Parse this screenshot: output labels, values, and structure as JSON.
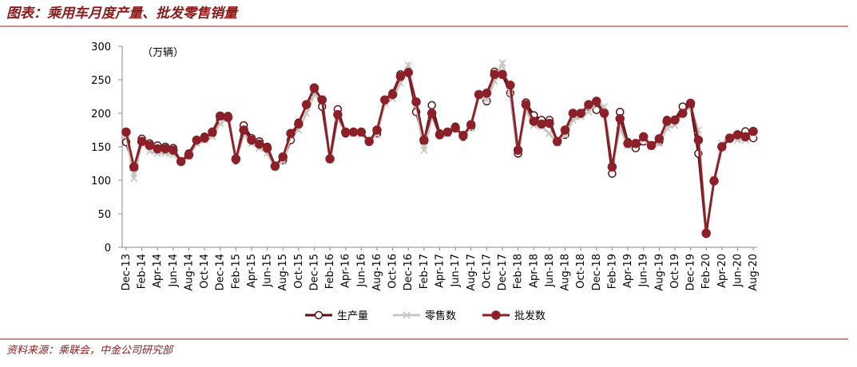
{
  "chart_data": {
    "type": "line",
    "title": "图表：乘用车月度产量、批发零售销量",
    "y_axis_label": "（万辆）",
    "source": "资料来源：乘联会，中金公司研究部",
    "categories": [
      "Dec-13",
      null,
      "Feb-14",
      null,
      "Apr-14",
      null,
      "Jun-14",
      null,
      "Aug-14",
      null,
      "Oct-14",
      null,
      "Dec-14",
      null,
      "Feb-15",
      null,
      "Apr-15",
      null,
      "Jun-15",
      null,
      "Aug-15",
      null,
      "Oct-15",
      null,
      "Dec-15",
      null,
      "Feb-16",
      null,
      "Apr-16",
      null,
      "Jun-16",
      null,
      "Aug-16",
      null,
      "Oct-16",
      null,
      "Dec-16",
      null,
      "Feb-17",
      null,
      "Apr-17",
      null,
      "Jun-17",
      null,
      "Aug-17",
      null,
      "Oct-17",
      null,
      "Dec-17",
      null,
      "Feb-18",
      null,
      "Apr-18",
      null,
      "Jun-18",
      null,
      "Aug-18",
      null,
      "Oct-18",
      null,
      "Dec-18",
      null,
      "Feb-19",
      null,
      "Apr-19",
      null,
      "Jun-19",
      null,
      "Aug-19",
      null,
      "Oct-19",
      null,
      "Dec-19",
      null,
      "Feb-20",
      null,
      "Apr-20",
      null,
      "Jun-20",
      null,
      "Aug-20"
    ],
    "series": [
      {
        "name": "生产量",
        "color": "#5a0f14",
        "marker": "open-circle",
        "values": [
          157,
          118,
          162,
          155,
          152,
          150,
          148,
          128,
          140,
          160,
          165,
          170,
          190,
          196,
          130,
          182,
          163,
          158,
          150,
          122,
          130,
          160,
          186,
          212,
          236,
          210,
          132,
          206,
          170,
          172,
          172,
          158,
          170,
          220,
          230,
          258,
          260,
          202,
          158,
          212,
          170,
          172,
          180,
          165,
          180,
          228,
          218,
          262,
          258,
          230,
          140,
          216,
          197,
          190,
          190,
          158,
          168,
          200,
          200,
          210,
          205,
          200,
          110,
          202,
          157,
          148,
          158,
          152,
          158,
          190,
          190,
          210,
          212,
          140,
          20,
          100,
          150,
          162,
          168,
          173,
          163
        ]
      },
      {
        "name": "零售数",
        "color": "#c8c8c0",
        "marker": "cross",
        "values": [
          168,
          103,
          158,
          143,
          140,
          140,
          138,
          130,
          135,
          155,
          160,
          165,
          185,
          192,
          130,
          168,
          155,
          148,
          140,
          120,
          128,
          165,
          175,
          200,
          228,
          222,
          130,
          193,
          172,
          170,
          168,
          160,
          168,
          215,
          222,
          245,
          272,
          212,
          145,
          195,
          168,
          170,
          178,
          165,
          178,
          225,
          220,
          248,
          275,
          232,
          145,
          205,
          182,
          180,
          170,
          155,
          168,
          190,
          195,
          202,
          215,
          210,
          120,
          178,
          152,
          155,
          160,
          150,
          155,
          178,
          182,
          200,
          210,
          175,
          22,
          102,
          155,
          165,
          160,
          160,
          170
        ]
      },
      {
        "name": "批发数",
        "color": "#8b2028",
        "marker": "filled-circle",
        "values": [
          172,
          120,
          158,
          152,
          147,
          147,
          145,
          128,
          138,
          160,
          163,
          172,
          196,
          194,
          132,
          175,
          160,
          154,
          148,
          121,
          135,
          170,
          184,
          213,
          238,
          220,
          132,
          198,
          172,
          172,
          172,
          158,
          175,
          220,
          228,
          255,
          261,
          217,
          160,
          200,
          168,
          172,
          178,
          167,
          183,
          228,
          230,
          258,
          258,
          242,
          145,
          213,
          188,
          184,
          185,
          158,
          175,
          200,
          200,
          213,
          218,
          200,
          120,
          192,
          155,
          155,
          165,
          152,
          162,
          188,
          190,
          200,
          215,
          160,
          21,
          99,
          150,
          163,
          168,
          165,
          173
        ]
      }
    ],
    "ylim": [
      0,
      300
    ],
    "yticks": [
      0,
      50,
      100,
      150,
      200,
      250,
      300
    ],
    "grid": false,
    "legend": "bottom"
  }
}
